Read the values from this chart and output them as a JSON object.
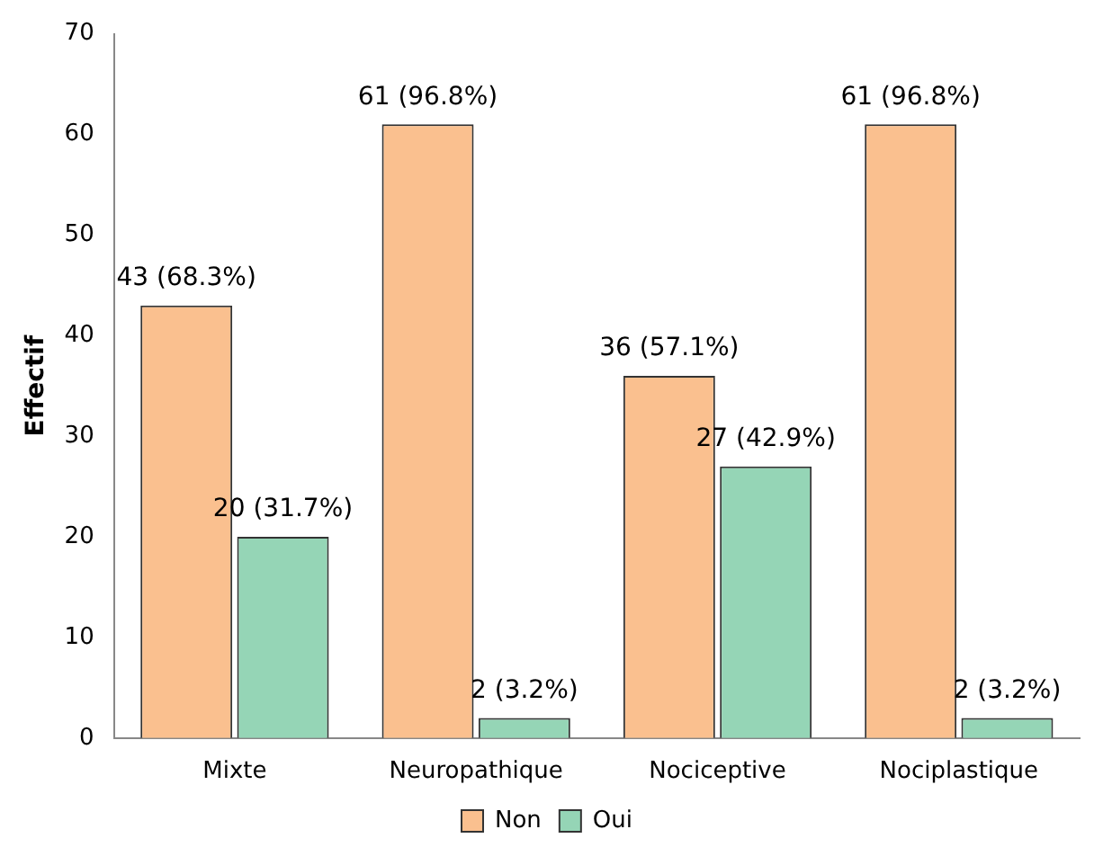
{
  "chart_data": {
    "type": "bar",
    "ylabel": "Effectif",
    "categories": [
      "Mixte",
      "Neuropathique",
      "Nociceptive",
      "Nociplastique"
    ],
    "series": [
      {
        "name": "Non",
        "color": "#fac08f",
        "values": [
          43,
          61,
          36,
          61
        ],
        "value_labels": [
          "43 (68.3%)",
          "61 (96.8%)",
          "36 (57.1%)",
          "61 (96.8%)"
        ]
      },
      {
        "name": "Oui",
        "color": "#95d5b6",
        "values": [
          20,
          2,
          27,
          2
        ],
        "value_labels": [
          "20 (31.7%)",
          "2 (3.2%)",
          "27 (42.9%)",
          "2 (3.2%)"
        ]
      }
    ],
    "ylim": [
      0,
      70
    ],
    "yticks": [
      0,
      10,
      20,
      30,
      40,
      50,
      60,
      70
    ],
    "grid": false,
    "legend": "bottom"
  }
}
